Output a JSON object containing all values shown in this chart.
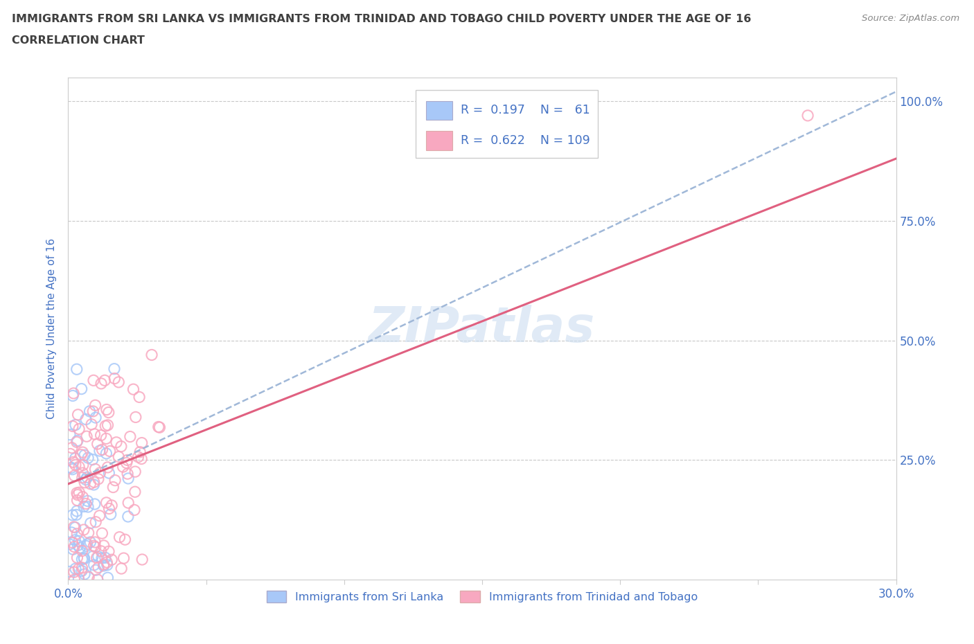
{
  "title_line1": "IMMIGRANTS FROM SRI LANKA VS IMMIGRANTS FROM TRINIDAD AND TOBAGO CHILD POVERTY UNDER THE AGE OF 16",
  "title_line2": "CORRELATION CHART",
  "source": "Source: ZipAtlas.com",
  "ylabel": "Child Poverty Under the Age of 16",
  "xlim": [
    0,
    0.3
  ],
  "ylim": [
    0,
    1.05
  ],
  "ytick_positions": [
    0,
    0.25,
    0.5,
    0.75,
    1.0
  ],
  "ytick_labels": [
    "",
    "25.0%",
    "50.0%",
    "75.0%",
    "100.0%"
  ],
  "grid_color": "#c8c8c8",
  "background_color": "#ffffff",
  "sri_lanka_color": "#a8c8f8",
  "trinidad_color": "#f8a8c0",
  "sri_lanka_line_color": "#a0b8d8",
  "trinidad_line_color": "#e06080",
  "sri_lanka_R": 0.197,
  "sri_lanka_N": 61,
  "trinidad_R": 0.622,
  "trinidad_N": 109,
  "watermark": "ZIPatlas",
  "title_color": "#404040",
  "axis_color": "#4472c4",
  "legend_text_color": "#4472c4",
  "sl_line_x0": 0.0,
  "sl_line_y0": 0.2,
  "sl_line_x1": 0.3,
  "sl_line_y1": 1.02,
  "tt_line_x0": 0.0,
  "tt_line_y0": 0.2,
  "tt_line_x1": 0.3,
  "tt_line_y1": 0.88
}
